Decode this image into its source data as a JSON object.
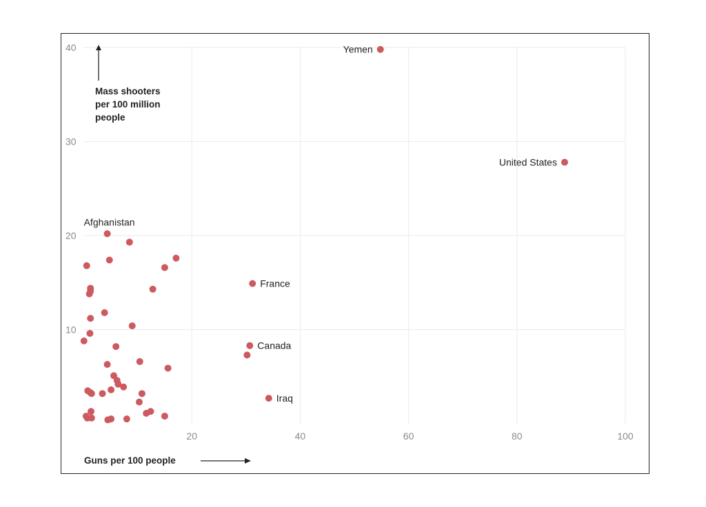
{
  "chart_data": {
    "type": "scatter",
    "title": "",
    "xlabel": "Guns per 100 people",
    "ylabel_lines": [
      "Mass shooters",
      "per 100 million",
      "people"
    ],
    "xlim": [
      0,
      100
    ],
    "ylim": [
      0,
      40
    ],
    "x_ticks": [
      "20",
      "40",
      "60",
      "80",
      "100"
    ],
    "y_ticks": [
      "10",
      "20",
      "30",
      "40"
    ],
    "grid": true,
    "colors": {
      "point": "#cc5a5f"
    },
    "labeled_points": [
      {
        "label": "Yemen",
        "x": 54.8,
        "y": 39.8,
        "side": "left"
      },
      {
        "label": "United States",
        "x": 88.8,
        "y": 27.8,
        "side": "left"
      },
      {
        "label": "Afghanistan",
        "x": 4.4,
        "y": 20.2,
        "side": "above"
      },
      {
        "label": "France",
        "x": 31.2,
        "y": 14.9,
        "side": "right"
      },
      {
        "label": "Canada",
        "x": 30.7,
        "y": 8.3,
        "side": "right"
      },
      {
        "label": "Iraq",
        "x": 34.2,
        "y": 2.7,
        "side": "right"
      }
    ],
    "points": [
      {
        "x": 8.5,
        "y": 19.3
      },
      {
        "x": 17.1,
        "y": 17.6
      },
      {
        "x": 0.6,
        "y": 16.8
      },
      {
        "x": 4.8,
        "y": 17.4
      },
      {
        "x": 15.0,
        "y": 16.6
      },
      {
        "x": 1.3,
        "y": 14.4
      },
      {
        "x": 1.3,
        "y": 14.1
      },
      {
        "x": 1.1,
        "y": 13.8
      },
      {
        "x": 12.8,
        "y": 14.3
      },
      {
        "x": 3.9,
        "y": 11.8
      },
      {
        "x": 1.3,
        "y": 11.2
      },
      {
        "x": 9.0,
        "y": 10.4
      },
      {
        "x": 1.2,
        "y": 9.6
      },
      {
        "x": 0.1,
        "y": 8.8
      },
      {
        "x": 6.0,
        "y": 8.2
      },
      {
        "x": 30.2,
        "y": 7.3
      },
      {
        "x": 10.4,
        "y": 6.6
      },
      {
        "x": 4.4,
        "y": 6.3
      },
      {
        "x": 15.6,
        "y": 5.9
      },
      {
        "x": 5.6,
        "y": 5.1
      },
      {
        "x": 6.2,
        "y": 4.6
      },
      {
        "x": 6.4,
        "y": 4.2
      },
      {
        "x": 7.4,
        "y": 3.9
      },
      {
        "x": 0.8,
        "y": 3.5
      },
      {
        "x": 1.3,
        "y": 3.3
      },
      {
        "x": 1.5,
        "y": 3.2
      },
      {
        "x": 3.5,
        "y": 3.2
      },
      {
        "x": 5.1,
        "y": 3.6
      },
      {
        "x": 10.8,
        "y": 3.2
      },
      {
        "x": 10.3,
        "y": 2.3
      },
      {
        "x": 12.4,
        "y": 1.3
      },
      {
        "x": 11.6,
        "y": 1.1
      },
      {
        "x": 1.4,
        "y": 1.3
      },
      {
        "x": 0.5,
        "y": 0.8
      },
      {
        "x": 0.7,
        "y": 0.6
      },
      {
        "x": 1.5,
        "y": 0.6
      },
      {
        "x": 4.5,
        "y": 0.4
      },
      {
        "x": 5.1,
        "y": 0.5
      },
      {
        "x": 8.0,
        "y": 0.5
      },
      {
        "x": 15.0,
        "y": 0.8
      }
    ]
  }
}
